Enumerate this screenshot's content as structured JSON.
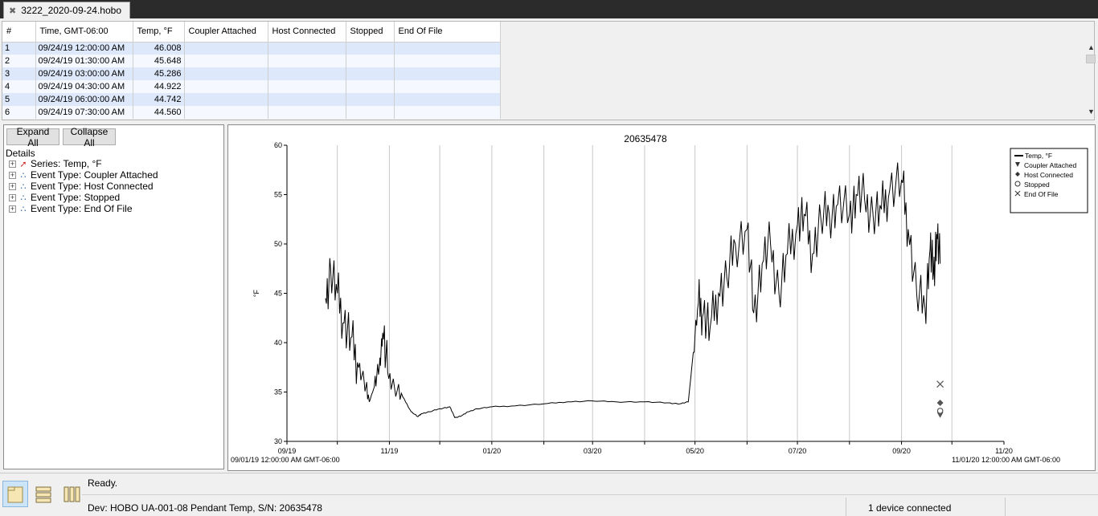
{
  "window": {
    "file_tab": "3222_2020-09-24.hobo"
  },
  "table": {
    "columns": [
      "#",
      "Time, GMT-06:00",
      "Temp, °F",
      "Coupler Attached",
      "Host Connected",
      "Stopped",
      "End Of File"
    ],
    "rows": [
      [
        "1",
        "09/24/19 12:00:00 AM",
        "46.008",
        "",
        "",
        "",
        ""
      ],
      [
        "2",
        "09/24/19 01:30:00 AM",
        "45.648",
        "",
        "",
        "",
        ""
      ],
      [
        "3",
        "09/24/19 03:00:00 AM",
        "45.286",
        "",
        "",
        "",
        ""
      ],
      [
        "4",
        "09/24/19 04:30:00 AM",
        "44.922",
        "",
        "",
        "",
        ""
      ],
      [
        "5",
        "09/24/19 06:00:00 AM",
        "44.742",
        "",
        "",
        "",
        ""
      ],
      [
        "6",
        "09/24/19 07:30:00 AM",
        "44.560",
        "",
        "",
        "",
        ""
      ]
    ]
  },
  "details_panel": {
    "expand_all": "Expand All",
    "collapse_all": "Collapse All",
    "label": "Details",
    "items": [
      {
        "label": "Series: Temp, °F",
        "icon": "series-line-icon"
      },
      {
        "label": "Event Type: Coupler Attached",
        "icon": "event-icon"
      },
      {
        "label": "Event Type: Host Connected",
        "icon": "event-icon"
      },
      {
        "label": "Event Type: Stopped",
        "icon": "event-icon"
      },
      {
        "label": "Event Type: End Of File",
        "icon": "event-icon"
      }
    ]
  },
  "chart_data": {
    "type": "line",
    "title": "20635478",
    "ylabel": "°F",
    "xlabel": "",
    "ylim": [
      30,
      60
    ],
    "yticks": [
      30,
      35,
      40,
      45,
      50,
      55,
      60
    ],
    "xrange": [
      "2019-09-01",
      "2020-11-01"
    ],
    "xtick_labels": [
      "09/19",
      "11/19",
      "01/20",
      "03/20",
      "05/20",
      "07/20",
      "09/20",
      "11/20"
    ],
    "x_start_label": "09/01/19 12:00:00 AM GMT-06:00",
    "x_end_label": "11/01/20 12:00:00 AM GMT-06:00",
    "grid": "vertical",
    "legend_position": "top-right",
    "series": [
      {
        "name": "Temp, °F",
        "style": "line",
        "color": "#000000",
        "x": [
          "2019-09-24",
          "2019-09-27",
          "2019-10-01",
          "2019-10-05",
          "2019-10-09",
          "2019-10-13",
          "2019-10-17",
          "2019-10-20",
          "2019-10-23",
          "2019-10-26",
          "2019-10-28",
          "2019-10-31",
          "2019-11-04",
          "2019-11-09",
          "2019-11-14",
          "2019-11-18",
          "2019-11-20",
          "2019-11-25",
          "2019-12-01",
          "2019-12-07",
          "2019-12-10",
          "2019-12-14",
          "2019-12-18",
          "2019-12-23",
          "2020-01-01",
          "2020-01-15",
          "2020-02-01",
          "2020-02-15",
          "2020-03-01",
          "2020-03-15",
          "2020-04-01",
          "2020-04-15",
          "2020-04-22",
          "2020-04-27",
          "2020-04-30",
          "2020-05-03",
          "2020-05-06",
          "2020-05-10",
          "2020-05-15",
          "2020-05-20",
          "2020-05-25",
          "2020-06-01",
          "2020-06-05",
          "2020-06-10",
          "2020-06-15",
          "2020-06-20",
          "2020-06-25",
          "2020-07-01",
          "2020-07-05",
          "2020-07-10",
          "2020-07-15",
          "2020-07-20",
          "2020-07-25",
          "2020-08-01",
          "2020-08-05",
          "2020-08-10",
          "2020-08-15",
          "2020-08-20",
          "2020-08-25",
          "2020-09-01",
          "2020-09-05",
          "2020-09-10",
          "2020-09-15",
          "2020-09-18",
          "2020-09-20",
          "2020-09-22",
          "2020-09-24"
        ],
        "values": [
          44.5,
          47.5,
          45.0,
          42.0,
          40.5,
          38.0,
          36.0,
          34.0,
          35.5,
          37.5,
          41.0,
          37.0,
          35.5,
          34.5,
          33.0,
          32.5,
          32.8,
          33.0,
          33.3,
          33.5,
          32.4,
          32.6,
          33.0,
          33.3,
          33.5,
          33.6,
          33.8,
          34.0,
          34.1,
          34.0,
          34.0,
          33.9,
          33.8,
          34.0,
          39.0,
          44.0,
          43.0,
          41.5,
          45.0,
          46.5,
          50.0,
          51.5,
          43.0,
          48.0,
          50.0,
          45.0,
          49.0,
          52.0,
          53.0,
          49.0,
          52.5,
          53.0,
          54.0,
          53.0,
          55.0,
          54.5,
          53.0,
          53.5,
          55.5,
          56.5,
          51.5,
          45.0,
          43.5,
          49.5,
          47.0,
          51.0,
          48.0
        ]
      },
      {
        "name": "Coupler Attached",
        "style": "marker",
        "marker": "triangle-down",
        "color": "#555555",
        "x": [
          "2020-09-24"
        ],
        "values": [
          32.7
        ]
      },
      {
        "name": "Host Connected",
        "style": "marker",
        "marker": "diamond",
        "color": "#555555",
        "x": [
          "2020-09-24"
        ],
        "values": [
          33.9
        ]
      },
      {
        "name": "Stopped",
        "style": "marker",
        "marker": "circle",
        "color": "#555555",
        "x": [
          "2020-09-24"
        ],
        "values": [
          33.1
        ]
      },
      {
        "name": "End Of File",
        "style": "marker",
        "marker": "x",
        "color": "#555555",
        "x": [
          "2020-09-24"
        ],
        "values": [
          35.8
        ]
      }
    ]
  },
  "statusbar": {
    "ready": "Ready.",
    "device": "Dev: HOBO UA-001-08 Pendant Temp, S/N: 20635478",
    "connected": "1 device connected",
    "buttons": [
      "details-view-icon",
      "table-view-icon",
      "columns-view-icon"
    ]
  }
}
